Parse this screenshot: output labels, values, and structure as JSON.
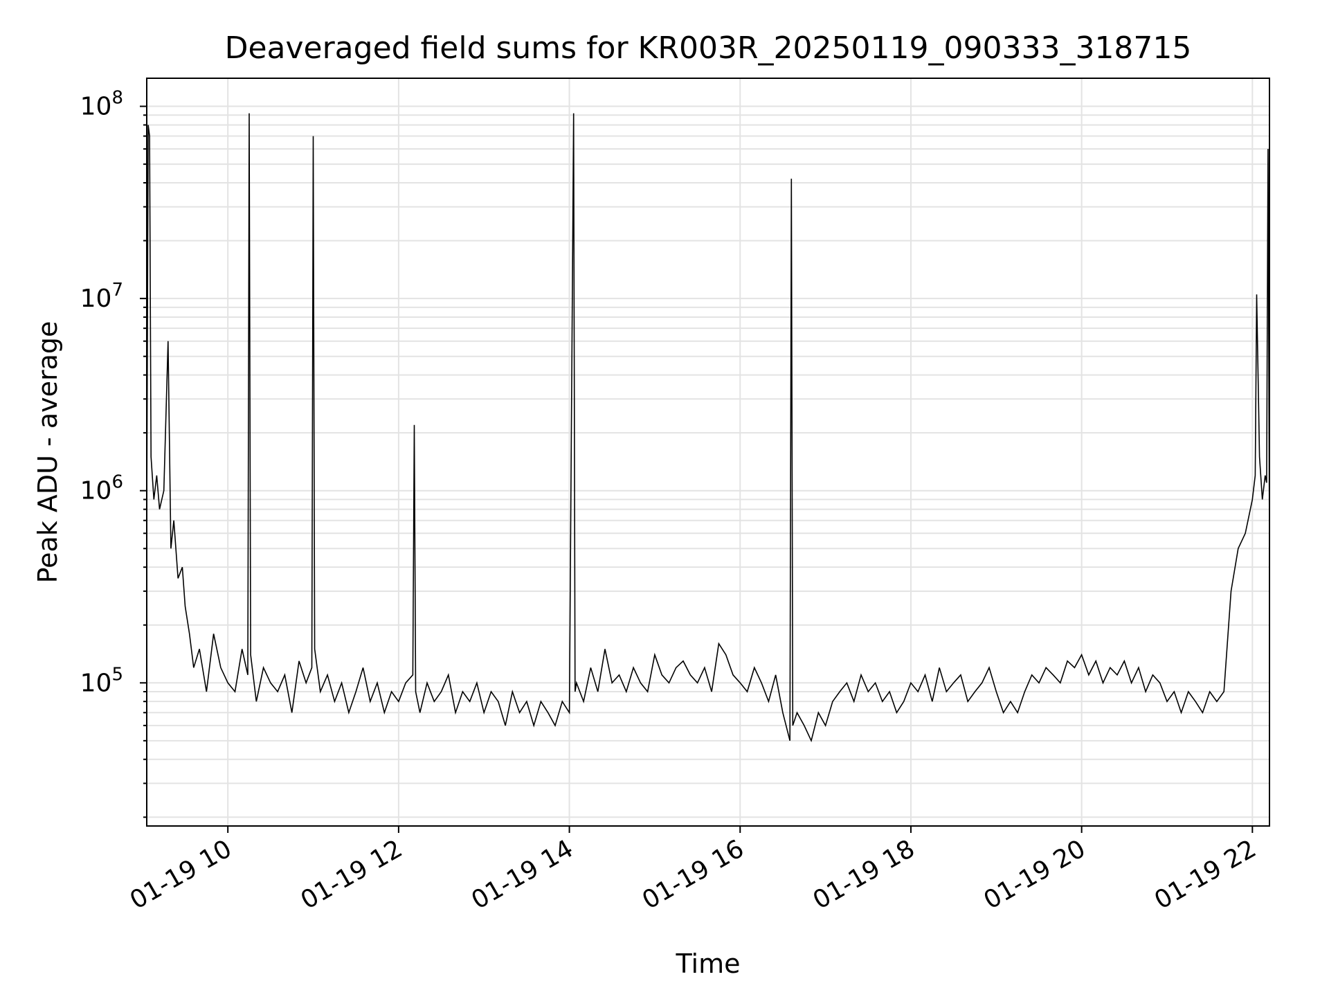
{
  "chart_data": {
    "type": "line",
    "title": "Deaveraged field sums for KR003R_20250119_090333_318715",
    "xlabel": "Time",
    "ylabel": "Peak ADU - average",
    "y_scale": "log",
    "ylim": [
      18000,
      140000000
    ],
    "xlim": [
      "01-19 09:03",
      "01-19 22:12"
    ],
    "x_ticks": [
      {
        "value": "01-19 10:00",
        "label": "01-19 10"
      },
      {
        "value": "01-19 12:00",
        "label": "01-19 12"
      },
      {
        "value": "01-19 14:00",
        "label": "01-19 14"
      },
      {
        "value": "01-19 16:00",
        "label": "01-19 16"
      },
      {
        "value": "01-19 18:00",
        "label": "01-19 18"
      },
      {
        "value": "01-19 20:00",
        "label": "01-19 20"
      },
      {
        "value": "01-19 22:00",
        "label": "01-19 22"
      }
    ],
    "y_ticks": [
      {
        "value": 100000,
        "base": "10",
        "exp": "5"
      },
      {
        "value": 1000000,
        "base": "10",
        "exp": "6"
      },
      {
        "value": 10000000,
        "base": "10",
        "exp": "7"
      },
      {
        "value": 100000000,
        "base": "10",
        "exp": "8"
      }
    ],
    "grid": true,
    "line_color": "#000000",
    "series": [
      {
        "x": [
          "01-19 09:03",
          "01-19 09:04",
          "01-19 09:05",
          "01-19 09:06",
          "01-19 09:08",
          "01-19 09:10",
          "01-19 09:12",
          "01-19 09:15",
          "01-19 09:18",
          "01-19 09:20",
          "01-19 09:22",
          "01-19 09:25",
          "01-19 09:28",
          "01-19 09:30",
          "01-19 09:33",
          "01-19 09:36",
          "01-19 09:40",
          "01-19 09:45",
          "01-19 09:50",
          "01-19 09:55",
          "01-19 10:00",
          "01-19 10:05",
          "01-19 10:10",
          "01-19 10:14",
          "01-19 10:15",
          "01-19 10:16",
          "01-19 10:20",
          "01-19 10:25",
          "01-19 10:30",
          "01-19 10:35",
          "01-19 10:40",
          "01-19 10:45",
          "01-19 10:50",
          "01-19 10:55",
          "01-19 10:59",
          "01-19 11:00",
          "01-19 11:01",
          "01-19 11:05",
          "01-19 11:10",
          "01-19 11:15",
          "01-19 11:20",
          "01-19 11:25",
          "01-19 11:30",
          "01-19 11:35",
          "01-19 11:40",
          "01-19 11:45",
          "01-19 11:50",
          "01-19 11:55",
          "01-19 12:00",
          "01-19 12:05",
          "01-19 12:10",
          "01-19 12:11",
          "01-19 12:12",
          "01-19 12:15",
          "01-19 12:20",
          "01-19 12:25",
          "01-19 12:30",
          "01-19 12:35",
          "01-19 12:40",
          "01-19 12:45",
          "01-19 12:50",
          "01-19 12:55",
          "01-19 13:00",
          "01-19 13:05",
          "01-19 13:10",
          "01-19 13:15",
          "01-19 13:20",
          "01-19 13:25",
          "01-19 13:30",
          "01-19 13:35",
          "01-19 13:40",
          "01-19 13:45",
          "01-19 13:50",
          "01-19 13:55",
          "01-19 14:00",
          "01-19 14:03",
          "01-19 14:04",
          "01-19 14:05",
          "01-19 14:10",
          "01-19 14:15",
          "01-19 14:20",
          "01-19 14:25",
          "01-19 14:30",
          "01-19 14:35",
          "01-19 14:40",
          "01-19 14:45",
          "01-19 14:50",
          "01-19 14:55",
          "01-19 15:00",
          "01-19 15:05",
          "01-19 15:10",
          "01-19 15:15",
          "01-19 15:20",
          "01-19 15:25",
          "01-19 15:30",
          "01-19 15:35",
          "01-19 15:40",
          "01-19 15:45",
          "01-19 15:50",
          "01-19 15:55",
          "01-19 16:00",
          "01-19 16:05",
          "01-19 16:10",
          "01-19 16:15",
          "01-19 16:20",
          "01-19 16:25",
          "01-19 16:30",
          "01-19 16:35",
          "01-19 16:36",
          "01-19 16:37",
          "01-19 16:40",
          "01-19 16:45",
          "01-19 16:50",
          "01-19 16:55",
          "01-19 17:00",
          "01-19 17:05",
          "01-19 17:10",
          "01-19 17:15",
          "01-19 17:20",
          "01-19 17:25",
          "01-19 17:30",
          "01-19 17:35",
          "01-19 17:40",
          "01-19 17:45",
          "01-19 17:50",
          "01-19 17:55",
          "01-19 18:00",
          "01-19 18:05",
          "01-19 18:10",
          "01-19 18:15",
          "01-19 18:20",
          "01-19 18:25",
          "01-19 18:30",
          "01-19 18:35",
          "01-19 18:40",
          "01-19 18:45",
          "01-19 18:50",
          "01-19 18:55",
          "01-19 19:00",
          "01-19 19:05",
          "01-19 19:10",
          "01-19 19:15",
          "01-19 19:20",
          "01-19 19:25",
          "01-19 19:30",
          "01-19 19:35",
          "01-19 19:40",
          "01-19 19:45",
          "01-19 19:50",
          "01-19 19:55",
          "01-19 20:00",
          "01-19 20:05",
          "01-19 20:10",
          "01-19 20:15",
          "01-19 20:20",
          "01-19 20:25",
          "01-19 20:30",
          "01-19 20:35",
          "01-19 20:40",
          "01-19 20:45",
          "01-19 20:50",
          "01-19 20:55",
          "01-19 21:00",
          "01-19 21:05",
          "01-19 21:10",
          "01-19 21:15",
          "01-19 21:20",
          "01-19 21:25",
          "01-19 21:30",
          "01-19 21:35",
          "01-19 21:40",
          "01-19 21:45",
          "01-19 21:50",
          "01-19 21:55",
          "01-19 22:00",
          "01-19 22:02",
          "01-19 22:03",
          "01-19 22:05",
          "01-19 22:07",
          "01-19 22:09",
          "01-19 22:10",
          "01-19 22:11",
          "01-19 22:12"
        ],
        "y": [
          700000,
          80000000,
          70000000,
          1500000,
          900000,
          1200000,
          800000,
          1000000,
          6000000,
          500000,
          700000,
          350000,
          400000,
          250000,
          180000,
          120000,
          150000,
          90000,
          180000,
          120000,
          100000,
          90000,
          150000,
          110000,
          92000000,
          140000,
          80000,
          120000,
          100000,
          90000,
          110000,
          70000,
          130000,
          100000,
          120000,
          70000000,
          150000,
          90000,
          110000,
          80000,
          100000,
          70000,
          90000,
          120000,
          80000,
          100000,
          70000,
          90000,
          80000,
          100000,
          110000,
          2200000,
          90000,
          70000,
          100000,
          80000,
          90000,
          110000,
          70000,
          90000,
          80000,
          100000,
          70000,
          90000,
          80000,
          60000,
          90000,
          70000,
          80000,
          60000,
          80000,
          70000,
          60000,
          80000,
          70000,
          92000000,
          90000,
          100000,
          80000,
          120000,
          90000,
          150000,
          100000,
          110000,
          90000,
          120000,
          100000,
          90000,
          140000,
          110000,
          100000,
          120000,
          130000,
          110000,
          100000,
          120000,
          90000,
          160000,
          140000,
          110000,
          100000,
          90000,
          120000,
          100000,
          80000,
          110000,
          70000,
          50000,
          42000000,
          60000,
          70000,
          60000,
          50000,
          70000,
          60000,
          80000,
          90000,
          100000,
          80000,
          110000,
          90000,
          100000,
          80000,
          90000,
          70000,
          80000,
          100000,
          90000,
          110000,
          80000,
          120000,
          90000,
          100000,
          110000,
          80000,
          90000,
          100000,
          120000,
          90000,
          70000,
          80000,
          70000,
          90000,
          110000,
          100000,
          120000,
          110000,
          100000,
          130000,
          120000,
          140000,
          110000,
          130000,
          100000,
          120000,
          110000,
          130000,
          100000,
          120000,
          90000,
          110000,
          100000,
          80000,
          90000,
          70000,
          90000,
          80000,
          70000,
          90000,
          80000,
          90000,
          300000,
          500000,
          600000,
          900000,
          1200000,
          10500000,
          1500000,
          900000,
          1200000,
          1100000,
          60000000,
          500000
        ]
      }
    ]
  }
}
